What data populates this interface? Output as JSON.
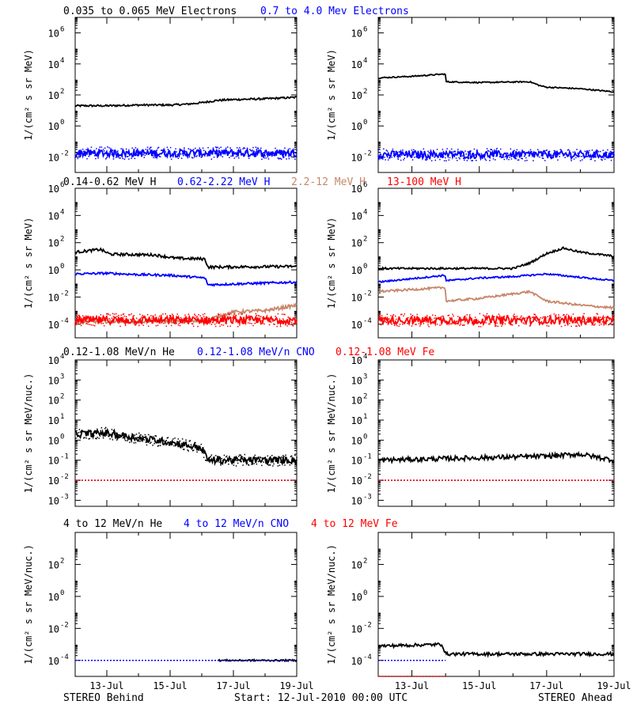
{
  "colors": {
    "black": "#000000",
    "blue": "#0000ff",
    "brown": "#c8866a",
    "red": "#ff0000",
    "background": "#ffffff"
  },
  "footer": {
    "left": "STEREO Behind",
    "center": "Start: 12-Jul-2010 00:00 UTC",
    "right": "STEREO Ahead"
  },
  "x_axis": {
    "range_days": [
      0,
      7
    ],
    "ticks": [
      {
        "day": 1,
        "label": "13-Jul"
      },
      {
        "day": 3,
        "label": "15-Jul"
      },
      {
        "day": 5,
        "label": "17-Jul"
      },
      {
        "day": 7,
        "label": "19-Jul"
      }
    ]
  },
  "rows": [
    {
      "id": "electrons",
      "ylabel": "1/(cm² s sr MeV)",
      "ylim_log10": [
        -3,
        7
      ],
      "yticks": [
        {
          "e": -2,
          "label": "10^-2"
        },
        {
          "e": 0,
          "label": "10^0"
        },
        {
          "e": 2,
          "label": "10^2"
        },
        {
          "e": 4,
          "label": "10^4"
        },
        {
          "e": 6,
          "label": "10^6"
        }
      ],
      "legend": [
        {
          "text": "0.035 to 0.065 MeV Electrons",
          "color": "#000000"
        },
        {
          "text": "0.7 to 4.0 Mev Electrons",
          "color": "#0000ff"
        }
      ]
    },
    {
      "id": "protons",
      "ylabel": "1/(cm² s sr MeV)",
      "ylim_log10": [
        -5,
        6
      ],
      "yticks": [
        {
          "e": -4,
          "label": "10^-4"
        },
        {
          "e": -2,
          "label": "10^-2"
        },
        {
          "e": 0,
          "label": "10^0"
        },
        {
          "e": 2,
          "label": "10^2"
        },
        {
          "e": 4,
          "label": "10^4"
        },
        {
          "e": 6,
          "label": "10^6"
        }
      ],
      "legend": [
        {
          "text": "0.14-0.62 MeV H",
          "color": "#000000"
        },
        {
          "text": "0.62-2.22 MeV H",
          "color": "#0000ff"
        },
        {
          "text": "2.2-12 MeV H",
          "color": "#c8866a"
        },
        {
          "text": "13-100 MeV H",
          "color": "#ff0000"
        }
      ]
    },
    {
      "id": "heavy-low",
      "ylabel": "1/(cm² s sr MeV/nuc.)",
      "ylim_log10": [
        -3.3,
        4
      ],
      "yticks": [
        {
          "e": -3,
          "label": "10^-3"
        },
        {
          "e": -2,
          "label": "10^-2"
        },
        {
          "e": -1,
          "label": "10^-1"
        },
        {
          "e": 0,
          "label": "10^0"
        },
        {
          "e": 1,
          "label": "10^1"
        },
        {
          "e": 2,
          "label": "10^2"
        },
        {
          "e": 3,
          "label": "10^3"
        },
        {
          "e": 4,
          "label": "10^4"
        }
      ],
      "legend": [
        {
          "text": "0.12-1.08 MeV/n He",
          "color": "#000000"
        },
        {
          "text": "0.12-1.08 MeV/n CNO",
          "color": "#0000ff"
        },
        {
          "text": "0.12-1.08 MeV Fe",
          "color": "#ff0000"
        }
      ]
    },
    {
      "id": "heavy-high",
      "ylabel": "1/(cm² s sr MeV/nuc.)",
      "ylim_log10": [
        -5,
        4
      ],
      "yticks": [
        {
          "e": -4,
          "label": "10^-4"
        },
        {
          "e": -2,
          "label": "10^-2"
        },
        {
          "e": 0,
          "label": "10^0"
        },
        {
          "e": 2,
          "label": "10^2"
        }
      ],
      "legend": [
        {
          "text": "4 to 12 MeV/n He",
          "color": "#000000"
        },
        {
          "text": "4 to 12 MeV/n CNO",
          "color": "#0000ff"
        },
        {
          "text": "4 to 12 MeV Fe",
          "color": "#ff0000"
        }
      ]
    }
  ],
  "chart_data": [
    {
      "panel": "electrons-behind",
      "type": "scatter",
      "xlabel": "",
      "ylabel": "1/(cm² s sr MeV)",
      "y_scale": "log",
      "series": [
        {
          "name": "0.035 to 0.065 MeV Electrons",
          "color": "#000000",
          "x": [
            0,
            1,
            2,
            3,
            3.5,
            4,
            4.5,
            5,
            6,
            7
          ],
          "y_log10": [
            1.3,
            1.3,
            1.35,
            1.35,
            1.4,
            1.5,
            1.65,
            1.7,
            1.75,
            1.85
          ],
          "scatter": 0.06
        },
        {
          "name": "0.7 to 4.0 Mev Electrons",
          "color": "#0000ff",
          "x": [
            0,
            7
          ],
          "y_log10": [
            -1.75,
            -1.75
          ],
          "scatter": 0.25
        }
      ]
    },
    {
      "panel": "electrons-ahead",
      "type": "scatter",
      "xlabel": "",
      "ylabel": "1/(cm² s sr MeV)",
      "y_scale": "log",
      "series": [
        {
          "name": "0.035 to 0.065 MeV Electrons",
          "color": "#000000",
          "x": [
            0,
            1,
            1.99,
            2.01,
            3,
            4.5,
            4.8,
            5,
            6,
            7
          ],
          "y_log10": [
            3.1,
            3.2,
            3.35,
            2.85,
            2.8,
            2.85,
            2.6,
            2.5,
            2.4,
            2.2
          ],
          "scatter": 0.04
        },
        {
          "name": "0.7 to 4.0 Mev Electrons",
          "color": "#0000ff",
          "x": [
            0,
            7
          ],
          "y_log10": [
            -1.85,
            -1.85
          ],
          "scatter": 0.25
        }
      ]
    },
    {
      "panel": "protons-behind",
      "type": "scatter",
      "xlabel": "",
      "ylabel": "1/(cm² s sr MeV)",
      "y_scale": "log",
      "series": [
        {
          "name": "0.14-0.62 MeV H",
          "color": "#000000",
          "x": [
            0,
            0.8,
            1.1,
            2.5,
            3.2,
            4.1,
            4.2,
            7
          ],
          "y_log10": [
            1.3,
            1.5,
            1.15,
            1.1,
            0.85,
            0.8,
            0.2,
            0.25
          ],
          "scatter": 0.1
        },
        {
          "name": "0.62-2.22 MeV H",
          "color": "#0000ff",
          "x": [
            0,
            1,
            2,
            3,
            4.1,
            4.2,
            7
          ],
          "y_log10": [
            -0.3,
            -0.25,
            -0.35,
            -0.4,
            -0.6,
            -1.1,
            -0.9
          ],
          "scatter": 0.08
        },
        {
          "name": "2.2-12 MeV H",
          "color": "#c8866a",
          "x": [
            0,
            4,
            5,
            6,
            7
          ],
          "y_log10": [
            -3.8,
            -3.8,
            -3.1,
            -3.0,
            -2.6
          ],
          "scatter": 0.12
        },
        {
          "name": "13-100 MeV H",
          "color": "#ff0000",
          "x": [
            0,
            7
          ],
          "y_log10": [
            -3.7,
            -3.7
          ],
          "scatter": 0.3
        }
      ]
    },
    {
      "panel": "protons-ahead",
      "type": "scatter",
      "xlabel": "",
      "ylabel": "1/(cm² s sr MeV)",
      "y_scale": "log",
      "series": [
        {
          "name": "0.14-0.62 MeV H",
          "color": "#000000",
          "x": [
            0,
            4,
            4.5,
            5,
            5.5,
            6,
            7
          ],
          "y_log10": [
            0.1,
            0.1,
            0.5,
            1.2,
            1.6,
            1.3,
            1.0
          ],
          "scatter": 0.07
        },
        {
          "name": "0.62-2.22 MeV H",
          "color": "#0000ff",
          "x": [
            0,
            1.99,
            2.01,
            3,
            4,
            5,
            6,
            7
          ],
          "y_log10": [
            -0.9,
            -0.4,
            -0.8,
            -0.6,
            -0.5,
            -0.3,
            -0.55,
            -0.8
          ],
          "scatter": 0.06
        },
        {
          "name": "2.2-12 MeV H",
          "color": "#c8866a",
          "x": [
            0,
            1.99,
            2.01,
            3,
            4.5,
            5,
            6,
            7
          ],
          "y_log10": [
            -1.6,
            -1.3,
            -2.3,
            -2.1,
            -1.6,
            -2.3,
            -2.6,
            -2.8
          ],
          "scatter": 0.08
        },
        {
          "name": "13-100 MeV H",
          "color": "#ff0000",
          "x": [
            0,
            7
          ],
          "y_log10": [
            -3.7,
            -3.7
          ],
          "scatter": 0.3
        }
      ]
    },
    {
      "panel": "heavy-low-behind",
      "type": "scatter",
      "xlabel": "",
      "ylabel": "1/(cm² s sr MeV/nuc.)",
      "y_scale": "log",
      "series": [
        {
          "name": "0.12-1.08 MeV/n He",
          "color": "#000000",
          "x": [
            0,
            1,
            2,
            3,
            4,
            4.2,
            7
          ],
          "y_log10": [
            0.3,
            0.35,
            0.1,
            -0.1,
            -0.4,
            -1.0,
            -1.0
          ],
          "scatter": 0.18
        },
        {
          "name": "0.12-1.08 MeV/n CNO",
          "color": "#0000ff",
          "x": [
            0,
            7
          ],
          "y_log10": [
            -2.0,
            -2.0
          ],
          "scatter": 0.0
        },
        {
          "name": "0.12-1.08 MeV Fe",
          "color": "#ff0000",
          "x": [
            0,
            7
          ],
          "y_log10": [
            -2.0,
            -2.0
          ],
          "scatter": 0.0
        }
      ]
    },
    {
      "panel": "heavy-low-ahead",
      "type": "scatter",
      "xlabel": "",
      "ylabel": "1/(cm² s sr MeV/nuc.)",
      "y_scale": "log",
      "series": [
        {
          "name": "0.12-1.08 MeV/n He",
          "color": "#000000",
          "x": [
            0,
            5,
            6,
            7
          ],
          "y_log10": [
            -1.0,
            -0.8,
            -0.7,
            -1.0
          ],
          "scatter": 0.12
        },
        {
          "name": "0.12-1.08 MeV/n CNO",
          "color": "#0000ff",
          "x": [
            0,
            7
          ],
          "y_log10": [
            -2.0,
            -2.0
          ],
          "scatter": 0.0
        },
        {
          "name": "0.12-1.08 MeV Fe",
          "color": "#ff0000",
          "x": [
            0,
            7
          ],
          "y_log10": [
            -2.0,
            -2.0
          ],
          "scatter": 0.0
        }
      ]
    },
    {
      "panel": "heavy-high-behind",
      "type": "scatter",
      "xlabel": "",
      "ylabel": "1/(cm² s sr MeV/nuc.)",
      "y_scale": "log",
      "series": [
        {
          "name": "4 to 12 MeV/n He",
          "color": "#000000",
          "x": [
            4.5,
            7
          ],
          "y_log10": [
            -4.0,
            -4.0
          ],
          "scatter": 0.05
        },
        {
          "name": "4 to 12 MeV/n CNO",
          "color": "#0000ff",
          "x": [
            0,
            7
          ],
          "y_log10": [
            -4.0,
            -4.0
          ],
          "scatter": 0.0
        },
        {
          "name": "4 to 12 MeV Fe",
          "color": "#ff0000",
          "x": [],
          "y_log10": [],
          "scatter": 0.0
        }
      ]
    },
    {
      "panel": "heavy-high-ahead",
      "type": "scatter",
      "xlabel": "",
      "ylabel": "1/(cm² s sr MeV/nuc.)",
      "y_scale": "log",
      "series": [
        {
          "name": "4 to 12 MeV/n He",
          "color": "#000000",
          "x": [
            0,
            1.9,
            2.0,
            7
          ],
          "y_log10": [
            -3.1,
            -3.0,
            -3.6,
            -3.6
          ],
          "scatter": 0.1
        },
        {
          "name": "4 to 12 MeV/n CNO",
          "color": "#0000ff",
          "x": [
            0,
            2
          ],
          "y_log10": [
            -4.0,
            -4.0
          ],
          "scatter": 0.0
        },
        {
          "name": "4 to 12 MeV Fe",
          "color": "#ff0000",
          "x": [
            0,
            2
          ],
          "y_log10": [
            -5.0,
            -5.0
          ],
          "scatter": 0.0
        }
      ]
    }
  ]
}
